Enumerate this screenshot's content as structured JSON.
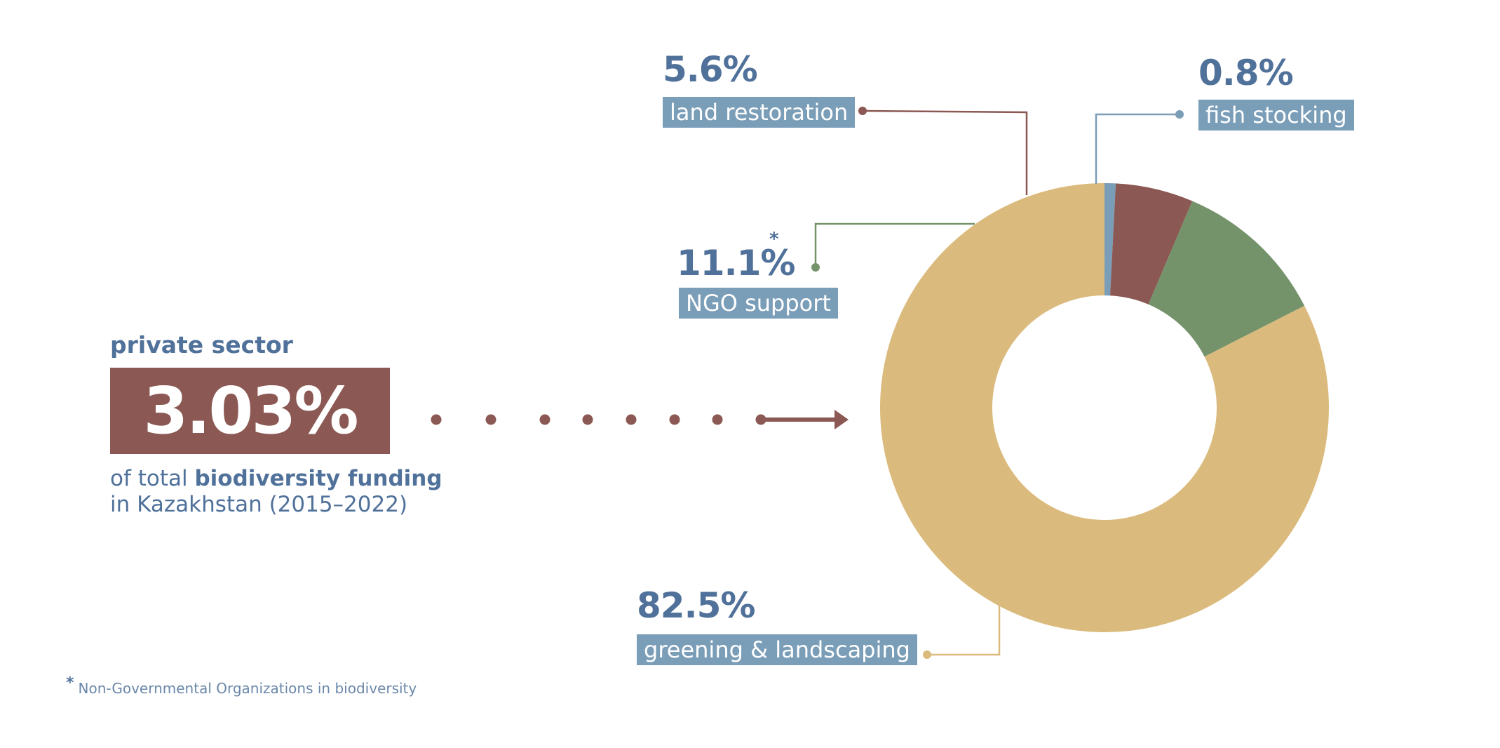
{
  "private_sector": {
    "heading": "private sector",
    "share": "3.03%",
    "desc_prefix": "of total",
    "desc_bold": "biodiversity funding",
    "desc_line2": "in Kazakhstan (2015–2022)"
  },
  "footnote": {
    "marker": "*",
    "text": "Non-Governmental Organizations in biodiversity"
  },
  "colors": {
    "text_blue": "#50719a",
    "label_bg": "#7a9db8",
    "accent_brown": "#8b5853"
  },
  "chart_data": {
    "type": "pie",
    "donut": true,
    "labels": [
      "greening & landscaping",
      "NGO support",
      "land restoration",
      "fish stocking"
    ],
    "values": [
      82.5,
      11.1,
      5.6,
      0.8
    ],
    "value_labels": [
      "82.5%",
      "11.1%",
      "5.6%",
      "0.8%"
    ],
    "colors": [
      "#dbbb7d",
      "#74936a",
      "#8b5853",
      "#7a9db8"
    ],
    "footnote_marker_on": "NGO support",
    "marker": "*"
  }
}
